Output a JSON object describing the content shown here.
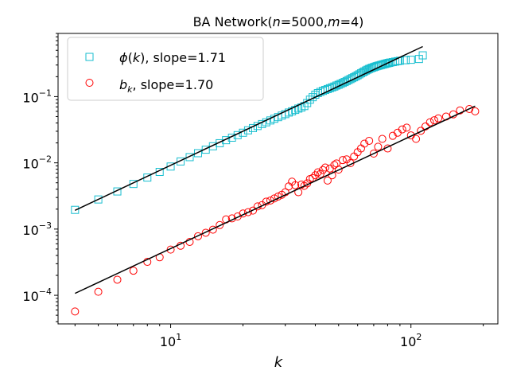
{
  "chart_data": {
    "type": "scatter",
    "title_prefix": "BA Network(",
    "title_n": "n",
    "title_mid1": "=5000,",
    "title_m": "m",
    "title_mid2": "=4)",
    "xlabel": "k",
    "ylabel": "",
    "xscale": "log",
    "yscale": "log",
    "xlim": [
      3.4,
      230
    ],
    "ylim": [
      3.7e-05,
      0.9
    ],
    "grid": false,
    "legend_position": "top-left",
    "x_tick_labels": [
      {
        "value": 10,
        "base": "10",
        "exp": "1"
      },
      {
        "value": 100,
        "base": "10",
        "exp": "2"
      }
    ],
    "y_tick_labels": [
      {
        "value": 0.0001,
        "base": "10",
        "exp": "−4"
      },
      {
        "value": 0.001,
        "base": "10",
        "exp": "−3"
      },
      {
        "value": 0.01,
        "base": "10",
        "exp": "−2"
      },
      {
        "value": 0.1,
        "base": "10",
        "exp": "−1"
      }
    ],
    "series": [
      {
        "name": "phi",
        "legend_symbol": "ϕ",
        "legend_var": "k",
        "legend_slope": "slope=1.71",
        "marker": "square",
        "color": "#17becf",
        "x": [
          4,
          5,
          6,
          7,
          8,
          9,
          10,
          11,
          12,
          13,
          14,
          15,
          16,
          17,
          18,
          19,
          20,
          21,
          22,
          23,
          24,
          25,
          26,
          27,
          28,
          29,
          30,
          31,
          32,
          33,
          34,
          35,
          36,
          37,
          38,
          39,
          40,
          41,
          42,
          43,
          44,
          45,
          46,
          47,
          48,
          49,
          50,
          51,
          52,
          53,
          54,
          55,
          56,
          57,
          58,
          59,
          60,
          61,
          62,
          63,
          64,
          65,
          66,
          67,
          68,
          69,
          70,
          71,
          72,
          73,
          74,
          75,
          76,
          77,
          78,
          79,
          80,
          81,
          82,
          84,
          86,
          88,
          90,
          95,
          100,
          108,
          112
        ],
        "y": [
          0.00195,
          0.0028,
          0.0037,
          0.0048,
          0.006,
          0.0073,
          0.0088,
          0.0105,
          0.0122,
          0.014,
          0.0158,
          0.0178,
          0.0198,
          0.022,
          0.024,
          0.0262,
          0.0285,
          0.031,
          0.0335,
          0.036,
          0.0385,
          0.041,
          0.0437,
          0.0463,
          0.049,
          0.0517,
          0.0545,
          0.0575,
          0.06,
          0.063,
          0.066,
          0.0685,
          0.072,
          0.08,
          0.09,
          0.098,
          0.107,
          0.113,
          0.118,
          0.122,
          0.126,
          0.13,
          0.134,
          0.138,
          0.142,
          0.147,
          0.151,
          0.156,
          0.161,
          0.166,
          0.172,
          0.178,
          0.184,
          0.19,
          0.196,
          0.203,
          0.21,
          0.217,
          0.225,
          0.233,
          0.24,
          0.248,
          0.255,
          0.262,
          0.268,
          0.273,
          0.278,
          0.283,
          0.288,
          0.292,
          0.296,
          0.3,
          0.304,
          0.308,
          0.312,
          0.316,
          0.32,
          0.323,
          0.327,
          0.332,
          0.338,
          0.343,
          0.348,
          0.355,
          0.36,
          0.37,
          0.42
        ],
        "fit": {
          "x": [
            4,
            112
          ],
          "y": [
            0.00192,
            0.57
          ]
        }
      },
      {
        "name": "b",
        "legend_symbol": "b",
        "legend_var": "k",
        "legend_slope": "slope=1.70",
        "marker": "circle",
        "color": "#ff0000",
        "x": [
          4,
          5,
          6,
          7,
          8,
          9,
          10,
          11,
          12,
          13,
          14,
          15,
          16,
          17,
          18,
          19,
          20,
          21,
          22,
          23,
          24,
          25,
          26,
          27,
          28,
          29,
          30,
          31,
          32,
          33,
          34,
          35,
          36,
          37,
          38,
          39,
          40,
          41,
          42,
          43,
          44,
          45,
          46,
          47,
          48,
          49,
          50,
          52,
          54,
          56,
          58,
          60,
          62,
          64,
          67,
          70,
          73,
          76,
          80,
          84,
          88,
          92,
          96,
          100,
          105,
          110,
          115,
          120,
          125,
          130,
          140,
          150,
          160,
          175,
          185
        ],
        "y": [
          5.7e-05,
          0.000113,
          0.000172,
          0.000235,
          0.00032,
          0.000375,
          0.00049,
          0.00056,
          0.00064,
          0.00078,
          0.00088,
          0.00098,
          0.00115,
          0.0014,
          0.00145,
          0.00155,
          0.00172,
          0.0018,
          0.0019,
          0.0022,
          0.0023,
          0.0026,
          0.0027,
          0.0029,
          0.0031,
          0.0033,
          0.0036,
          0.0044,
          0.0052,
          0.0046,
          0.0036,
          0.0047,
          0.0045,
          0.0049,
          0.0057,
          0.0059,
          0.0065,
          0.0072,
          0.0068,
          0.0078,
          0.0085,
          0.0054,
          0.0082,
          0.0065,
          0.0093,
          0.0098,
          0.0079,
          0.011,
          0.0113,
          0.0099,
          0.0125,
          0.0145,
          0.0165,
          0.0195,
          0.0215,
          0.0138,
          0.0175,
          0.023,
          0.0165,
          0.0256,
          0.0285,
          0.032,
          0.034,
          0.026,
          0.023,
          0.0305,
          0.0355,
          0.041,
          0.044,
          0.047,
          0.05,
          0.054,
          0.062,
          0.065,
          0.06
        ],
        "fit": {
          "x": [
            4,
            185
          ],
          "y": [
            0.000107,
            0.072
          ]
        }
      }
    ]
  }
}
